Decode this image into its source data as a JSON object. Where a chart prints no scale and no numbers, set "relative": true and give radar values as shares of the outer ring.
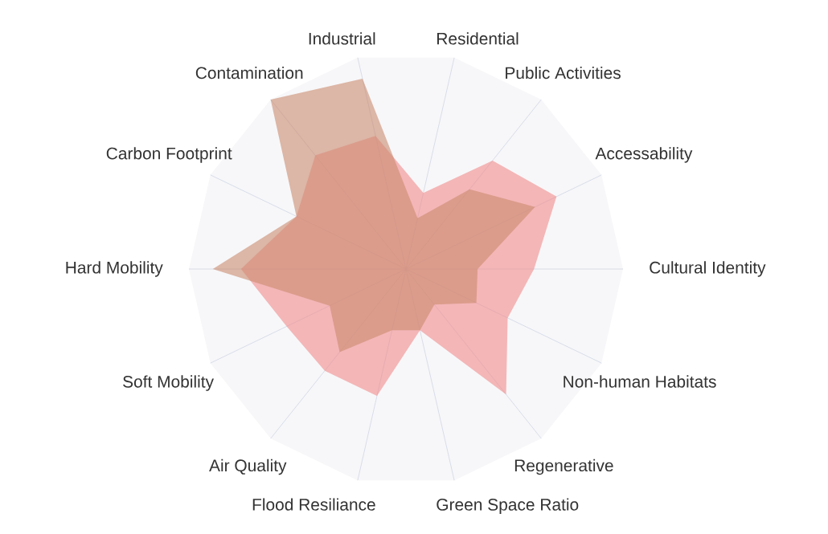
{
  "chart_data": {
    "type": "radar",
    "relative": true,
    "categories": [
      "Industrial",
      "Residential",
      "Public Activities",
      "Accessability",
      "Cultural Identity",
      "Non-human Habitats",
      "Regenerative",
      "Green Space Ratio",
      "Flood Resiliance",
      "Air Quality",
      "Soft Mobility",
      "Hard Mobility",
      "Carbon Footprint",
      "Contamination"
    ],
    "series": [
      {
        "color": "#f28b8b",
        "values": [
          0.63,
          0.36,
          0.64,
          0.77,
          0.59,
          0.52,
          0.74,
          0.29,
          0.6,
          0.6,
          0.61,
          0.76,
          0.56,
          0.67
        ]
      },
      {
        "color": "#c98a6e",
        "values": [
          0.9,
          0.24,
          0.47,
          0.66,
          0.33,
          0.36,
          0.21,
          0.29,
          0.29,
          0.49,
          0.39,
          0.89,
          0.56,
          1.0
        ]
      }
    ]
  }
}
